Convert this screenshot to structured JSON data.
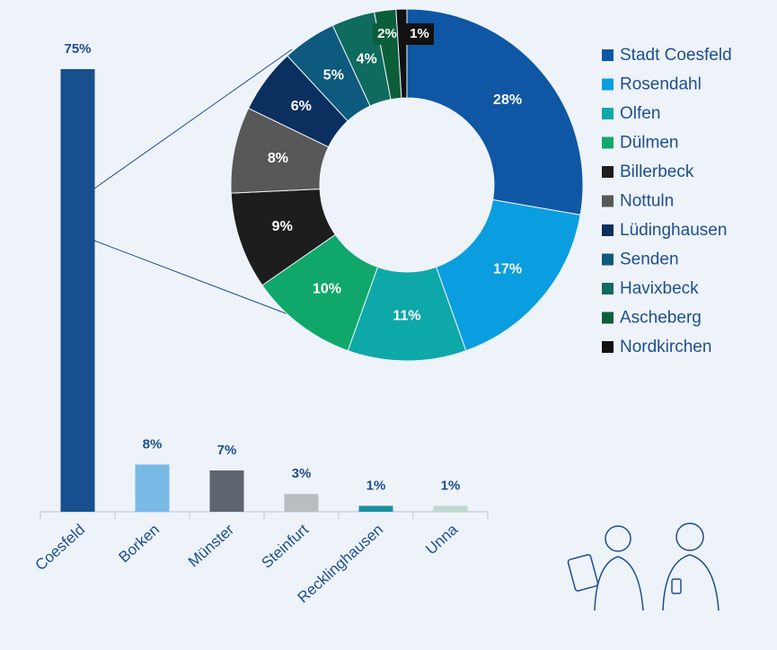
{
  "chart_data": [
    {
      "type": "bar",
      "categories": [
        "Coesfeld",
        "Borken",
        "Münster",
        "Steinfurt",
        "Recklinghausen",
        "Unna"
      ],
      "values": [
        75,
        8,
        7,
        3,
        1,
        1
      ],
      "value_labels": [
        "75%",
        "8%",
        "7%",
        "3%",
        "1%",
        "1%"
      ],
      "colors": [
        "#174f8f",
        "#79b9e6",
        "#5f6670",
        "#b9bdc1",
        "#1e8fa3",
        "#bfd9cf"
      ]
    },
    {
      "type": "donut",
      "categories": [
        "Stadt Coesfeld",
        "Rosendahl",
        "Olfen",
        "Dülmen",
        "Billerbeck",
        "Nottuln",
        "Lüdinghausen",
        "Senden",
        "Havixbeck",
        "Ascheberg",
        "Nordkirchen"
      ],
      "values": [
        28,
        17,
        11,
        10,
        9,
        8,
        6,
        5,
        4,
        2,
        1
      ],
      "value_labels": [
        "28%",
        "17%",
        "11%",
        "10%",
        "9%",
        "8%",
        "6%",
        "5%",
        "4%",
        "2%",
        "1%"
      ],
      "colors": [
        "#0f57a5",
        "#0a9ee0",
        "#0ea8a8",
        "#10a86a",
        "#1d1d1d",
        "#585858",
        "#0b2f5e",
        "#0d5a7e",
        "#0e6b5e",
        "#0c5e3a",
        "#111111"
      ]
    }
  ]
}
